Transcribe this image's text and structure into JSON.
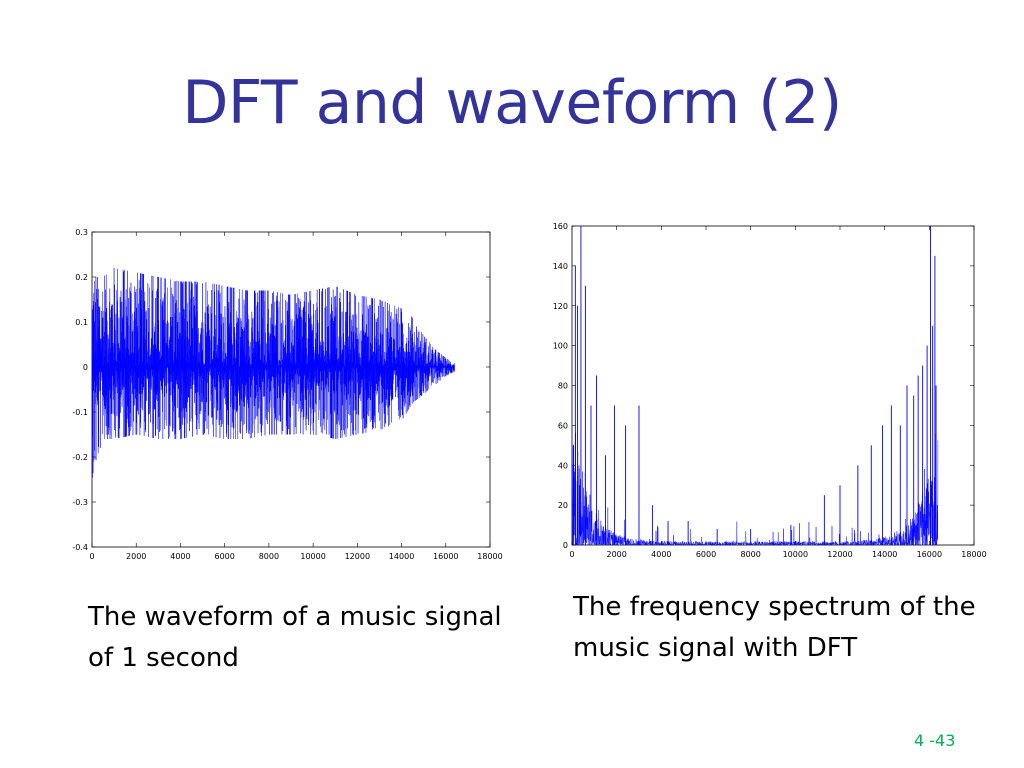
{
  "slide": {
    "title": "DFT and waveform (2)",
    "caption_left": "The waveform of a music signal of 1 second",
    "caption_right": "The frequency spectrum of the music signal with DFT",
    "page_number": "4 -43"
  },
  "colors": {
    "title": "#333399",
    "signal": "#0000ff",
    "page_number": "#00b050"
  },
  "chart_data": [
    {
      "type": "line",
      "title": "",
      "xlabel": "",
      "ylabel": "",
      "xlim": [
        0,
        18000
      ],
      "ylim": [
        -0.4,
        0.3
      ],
      "x_ticks": [
        "0",
        "2000",
        "4000",
        "6000",
        "8000",
        "10000",
        "12000",
        "14000",
        "16000",
        "18000"
      ],
      "y_ticks": [
        "0.3",
        "0.2",
        "0.1",
        "0",
        "-0.1",
        "-0.2",
        "-0.3",
        "-0.4"
      ],
      "grid": false,
      "series": [
        {
          "color": "#0000ff",
          "envelope_x": [
            0,
            500,
            1000,
            2000,
            3000,
            4000,
            5000,
            6000,
            7000,
            8000,
            9000,
            10000,
            11000,
            12000,
            13000,
            14000,
            14500,
            15000,
            15500,
            16000,
            16400
          ],
          "envelope_upper": [
            0.2,
            0.2,
            0.22,
            0.21,
            0.2,
            0.19,
            0.19,
            0.18,
            0.17,
            0.17,
            0.16,
            0.17,
            0.18,
            0.16,
            0.15,
            0.13,
            0.11,
            0.07,
            0.04,
            0.02,
            0.01
          ],
          "envelope_lower": [
            -0.25,
            -0.16,
            -0.16,
            -0.15,
            -0.16,
            -0.16,
            -0.15,
            -0.16,
            -0.16,
            -0.15,
            -0.15,
            -0.15,
            -0.16,
            -0.15,
            -0.14,
            -0.12,
            -0.08,
            -0.06,
            -0.04,
            -0.02,
            -0.01
          ]
        }
      ]
    },
    {
      "type": "line",
      "title": "",
      "xlabel": "",
      "ylabel": "",
      "xlim": [
        0,
        18000
      ],
      "ylim": [
        0,
        160
      ],
      "x_ticks": [
        "0",
        "2000",
        "4000",
        "6000",
        "8000",
        "10000",
        "12000",
        "14000",
        "16000",
        "18000"
      ],
      "y_ticks": [
        "160",
        "140",
        "120",
        "100",
        "80",
        "60",
        "40",
        "20",
        "0"
      ],
      "grid": false,
      "series": [
        {
          "color": "#0000ff",
          "peaks_x": [
            60,
            150,
            250,
            400,
            600,
            850,
            1100,
            1500,
            1900,
            2400,
            3000,
            3600,
            4300,
            5200,
            6500,
            8000,
            9800,
            11300,
            12000,
            12800,
            13400,
            13900,
            14300,
            14700,
            15000,
            15300,
            15500,
            15700,
            15900,
            16050,
            16150,
            16250,
            16300
          ],
          "peaks_y": [
            50,
            140,
            120,
            160,
            130,
            70,
            85,
            45,
            70,
            60,
            70,
            20,
            12,
            12,
            8,
            8,
            10,
            25,
            30,
            40,
            50,
            60,
            70,
            60,
            80,
            75,
            85,
            90,
            100,
            160,
            110,
            145,
            80
          ]
        }
      ]
    }
  ]
}
